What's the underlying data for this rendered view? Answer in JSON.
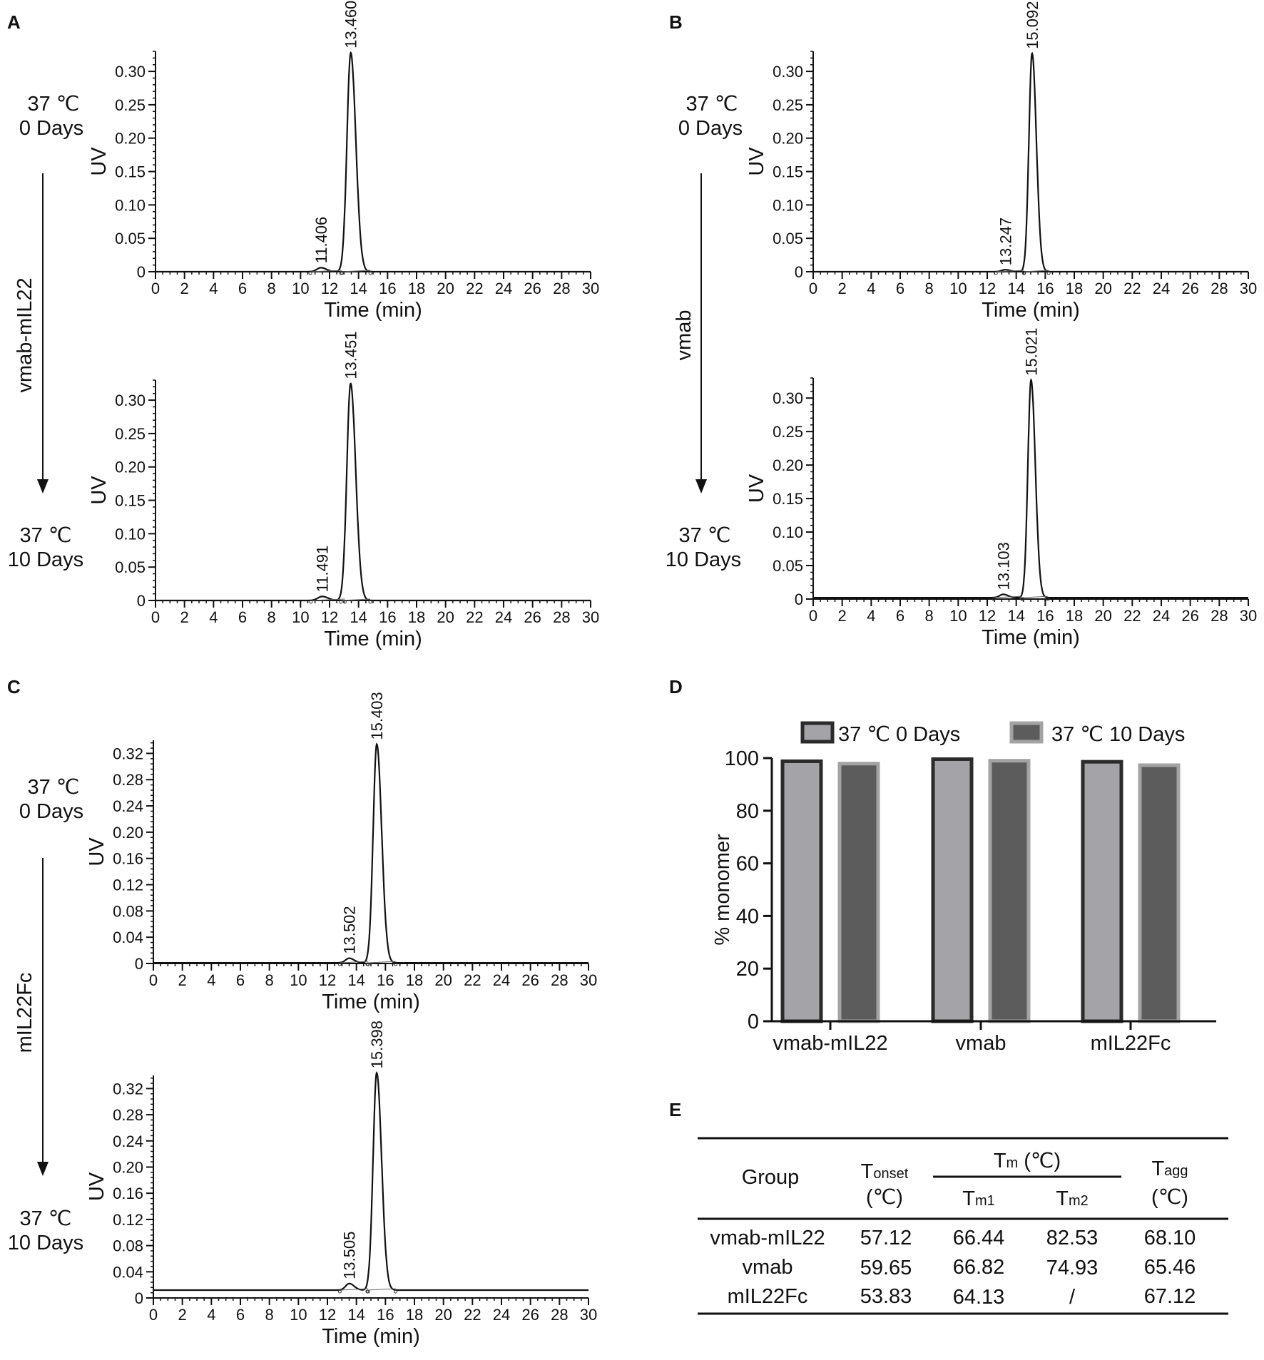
{
  "panels": {
    "A": {
      "letter": "A",
      "sample": "vmab-mIL22",
      "cond_top": [
        "37 ℃",
        "0 Days"
      ],
      "cond_bottom": [
        "37 ℃",
        "10 Days"
      ]
    },
    "B": {
      "letter": "B",
      "sample": "vmab",
      "cond_top": [
        "37 ℃",
        "0 Days"
      ],
      "cond_bottom": [
        "37 ℃",
        "10 Days"
      ]
    },
    "C": {
      "letter": "C",
      "sample": "mIL22Fc",
      "cond_top": [
        "37 ℃",
        "0 Days"
      ],
      "cond_bottom": [
        "37 ℃",
        "10 Days"
      ]
    },
    "D": {
      "letter": "D"
    },
    "E": {
      "letter": "E"
    }
  },
  "chart_data": [
    {
      "type": "line",
      "panel": "A",
      "condition": "37 ℃ 0 Days",
      "xlabel": "Time (min)",
      "ylabel": "UV",
      "xlim": [
        0,
        30
      ],
      "ylim": [
        0,
        0.33
      ],
      "xticks": [
        0,
        2,
        4,
        6,
        8,
        10,
        12,
        14,
        16,
        18,
        20,
        22,
        24,
        26,
        28,
        30
      ],
      "yticks": [
        0,
        0.05,
        0.1,
        0.15,
        0.2,
        0.25,
        0.3
      ],
      "ytick_labels": [
        "0",
        "0.05",
        "0.10",
        "0.15",
        "0.20",
        "0.25",
        "0.30"
      ],
      "baseline": 0,
      "peaks": [
        {
          "time": 11.406,
          "label": "11.406",
          "height": 0.006,
          "width": 0.28
        },
        {
          "time": 13.46,
          "label": "13.460",
          "height": 0.328,
          "width": 0.26
        }
      ]
    },
    {
      "type": "line",
      "panel": "A",
      "condition": "37 ℃ 10 Days",
      "xlabel": "Time (min)",
      "ylabel": "UV",
      "xlim": [
        0,
        30
      ],
      "ylim": [
        0,
        0.33
      ],
      "xticks": [
        0,
        2,
        4,
        6,
        8,
        10,
        12,
        14,
        16,
        18,
        20,
        22,
        24,
        26,
        28,
        30
      ],
      "yticks": [
        0,
        0.05,
        0.1,
        0.15,
        0.2,
        0.25,
        0.3
      ],
      "ytick_labels": [
        "0",
        "0.05",
        "0.10",
        "0.15",
        "0.20",
        "0.25",
        "0.30"
      ],
      "baseline": 0,
      "peaks": [
        {
          "time": 11.491,
          "label": "11.491",
          "height": 0.006,
          "width": 0.3
        },
        {
          "time": 13.451,
          "label": "13.451",
          "height": 0.325,
          "width": 0.26
        }
      ]
    },
    {
      "type": "line",
      "panel": "B",
      "condition": "37 ℃ 0 Days",
      "xlabel": "Time (min)",
      "ylabel": "UV",
      "xlim": [
        0,
        30
      ],
      "ylim": [
        0,
        0.33
      ],
      "xticks": [
        0,
        2,
        4,
        6,
        8,
        10,
        12,
        14,
        16,
        18,
        20,
        22,
        24,
        26,
        28,
        30
      ],
      "yticks": [
        0,
        0.05,
        0.1,
        0.15,
        0.2,
        0.25,
        0.3
      ],
      "ytick_labels": [
        "0",
        "0.05",
        "0.10",
        "0.15",
        "0.20",
        "0.25",
        "0.30"
      ],
      "baseline": 0,
      "peaks": [
        {
          "time": 13.247,
          "label": "13.247",
          "height": 0.003,
          "width": 0.25
        },
        {
          "time": 15.092,
          "label": "15.092",
          "height": 0.327,
          "width": 0.22
        }
      ]
    },
    {
      "type": "line",
      "panel": "B",
      "condition": "37 ℃ 10 Days",
      "xlabel": "Time (min)",
      "ylabel": "UV",
      "xlim": [
        0,
        30
      ],
      "ylim": [
        0,
        0.33
      ],
      "xticks": [
        0,
        2,
        4,
        6,
        8,
        10,
        12,
        14,
        16,
        18,
        20,
        22,
        24,
        26,
        28,
        30
      ],
      "yticks": [
        0,
        0.05,
        0.1,
        0.15,
        0.2,
        0.25,
        0.3
      ],
      "ytick_labels": [
        "0",
        "0.05",
        "0.10",
        "0.15",
        "0.20",
        "0.25",
        "0.30"
      ],
      "baseline": 0.002,
      "peaks": [
        {
          "time": 13.103,
          "label": "13.103",
          "height": 0.005,
          "width": 0.25
        },
        {
          "time": 15.021,
          "label": "15.021",
          "height": 0.325,
          "width": 0.22
        }
      ]
    },
    {
      "type": "line",
      "panel": "C",
      "condition": "37 ℃ 0 Days",
      "xlabel": "Time (min)",
      "ylabel": "UV",
      "xlim": [
        0,
        30
      ],
      "ylim": [
        0,
        0.34
      ],
      "xticks": [
        0,
        2,
        4,
        6,
        8,
        10,
        12,
        14,
        16,
        18,
        20,
        22,
        24,
        26,
        28,
        30
      ],
      "yticks": [
        0,
        0.04,
        0.08,
        0.12,
        0.16,
        0.2,
        0.24,
        0.28,
        0.32
      ],
      "ytick_labels": [
        "0",
        "0.04",
        "0.08",
        "0.12",
        "0.16",
        "0.20",
        "0.24",
        "0.28",
        "0.32"
      ],
      "baseline": 0.001,
      "peaks": [
        {
          "time": 13.502,
          "label": "13.502",
          "height": 0.007,
          "width": 0.25
        },
        {
          "time": 15.403,
          "label": "15.403",
          "height": 0.333,
          "width": 0.25
        }
      ]
    },
    {
      "type": "line",
      "panel": "C",
      "condition": "37 ℃ 10 Days",
      "xlabel": "Time (min)",
      "ylabel": "UV",
      "xlim": [
        0,
        30
      ],
      "ylim": [
        0,
        0.34
      ],
      "xticks": [
        0,
        2,
        4,
        6,
        8,
        10,
        12,
        14,
        16,
        18,
        20,
        22,
        24,
        26,
        28,
        30
      ],
      "yticks": [
        0,
        0.04,
        0.08,
        0.12,
        0.16,
        0.2,
        0.24,
        0.28,
        0.32
      ],
      "ytick_labels": [
        "0",
        "0.04",
        "0.08",
        "0.12",
        "0.16",
        "0.20",
        "0.24",
        "0.28",
        "0.32"
      ],
      "baseline": 0.012,
      "peaks": [
        {
          "time": 13.505,
          "label": "13.505",
          "height": 0.01,
          "width": 0.25
        },
        {
          "time": 15.398,
          "label": "15.398",
          "height": 0.332,
          "width": 0.25
        }
      ]
    },
    {
      "type": "bar",
      "panel": "D",
      "categories": [
        "vmab-mIL22",
        "vmab",
        "mIL22Fc"
      ],
      "ylabel": "% monomer",
      "ylim": [
        0,
        100
      ],
      "yticks": [
        0,
        20,
        40,
        60,
        80,
        100
      ],
      "legend_position": "top",
      "series": [
        {
          "name": "37 ℃  0 Days",
          "values": [
            98.8,
            99.6,
            98.6
          ],
          "fill": "#a3a3a8",
          "stroke": "#2b2b2b"
        },
        {
          "name": "37 ℃  10 Days",
          "values": [
            97.9,
            99.0,
            97.3
          ],
          "fill": "#5c5c5c",
          "stroke": "#a3a3a3"
        }
      ]
    },
    {
      "type": "table",
      "panel": "E",
      "header": {
        "group": "Group",
        "tonset": [
          "T",
          "onset",
          "(℃)"
        ],
        "tm": [
          "T",
          "m",
          " (℃)"
        ],
        "tm1": [
          "T",
          "m1"
        ],
        "tm2": [
          "T",
          "m2"
        ],
        "tagg": [
          "T",
          "agg",
          "(℃)"
        ]
      },
      "rows": [
        {
          "group": "vmab-mIL22",
          "tonset": "57.12",
          "tm1": "66.44",
          "tm2": "82.53",
          "tagg": "68.10"
        },
        {
          "group": "vmab",
          "tonset": "59.65",
          "tm1": "66.82",
          "tm2": "74.93",
          "tagg": "65.46"
        },
        {
          "group": "mIL22Fc",
          "tonset": "53.83",
          "tm1": "64.13",
          "tm2": "/",
          "tagg": "67.12"
        }
      ]
    }
  ]
}
